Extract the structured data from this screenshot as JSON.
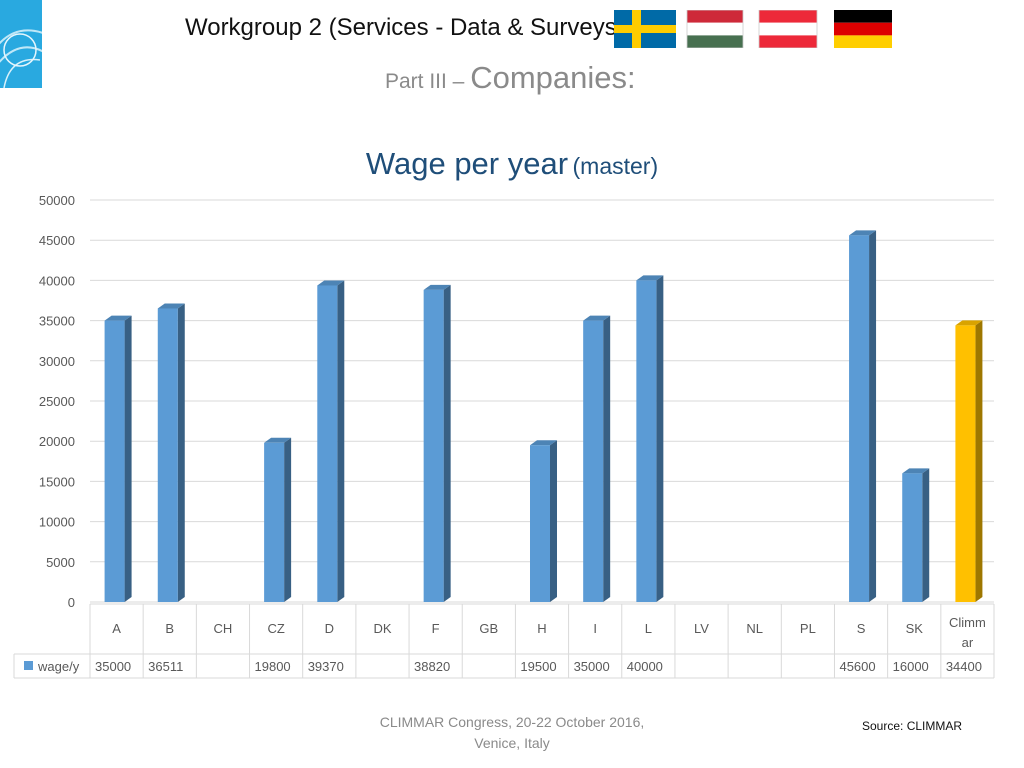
{
  "header": {
    "title": "Workgroup 2 (Services - Data & Surveys)",
    "subtitle_prefix": "Part III – ",
    "subtitle_main": "Companies:"
  },
  "flags": [
    {
      "country": "sweden-flag",
      "colors": [
        "#006aa7",
        "#fecc00"
      ]
    },
    {
      "country": "hungary-flag",
      "colors": [
        "#ce2939",
        "#ffffff",
        "#477050"
      ]
    },
    {
      "country": "austria-flag",
      "colors": [
        "#ed2939",
        "#ffffff",
        "#ed2939"
      ]
    },
    {
      "country": "germany-flag",
      "colors": [
        "#000000",
        "#dd0000",
        "#ffce00"
      ]
    }
  ],
  "chart_data": {
    "type": "bar",
    "title": "Wage per year",
    "title_suffix": "(master)",
    "categories": [
      "A",
      "B",
      "CH",
      "CZ",
      "D",
      "DK",
      "F",
      "GB",
      "H",
      "I",
      "L",
      "LV",
      "NL",
      "PL",
      "S",
      "SK",
      "Climmar"
    ],
    "category_display": [
      "A",
      "B",
      "CH",
      "CZ",
      "D",
      "DK",
      "F",
      "GB",
      "H",
      "I",
      "L",
      "LV",
      "NL",
      "PL",
      "S",
      "SK",
      "Climm|ar"
    ],
    "series": [
      {
        "name": "wage/y",
        "values": [
          35000,
          36511,
          null,
          19800,
          39370,
          null,
          38820,
          null,
          19500,
          35000,
          40000,
          null,
          null,
          null,
          45600,
          16000,
          34400
        ]
      }
    ],
    "ylim": [
      0,
      50000
    ],
    "yticks": [
      0,
      5000,
      10000,
      15000,
      20000,
      25000,
      30000,
      35000,
      40000,
      45000,
      50000
    ],
    "grid": true,
    "data_table": true,
    "colors": {
      "bar": "#5b9bd5",
      "highlight": "#ffc000",
      "highlight_category": "Climmar"
    }
  },
  "footer": {
    "line1": "CLIMMAR Congress, 20-22 October 2016,",
    "line2": "Venice, Italy",
    "source": "Source: CLIMMAR"
  }
}
